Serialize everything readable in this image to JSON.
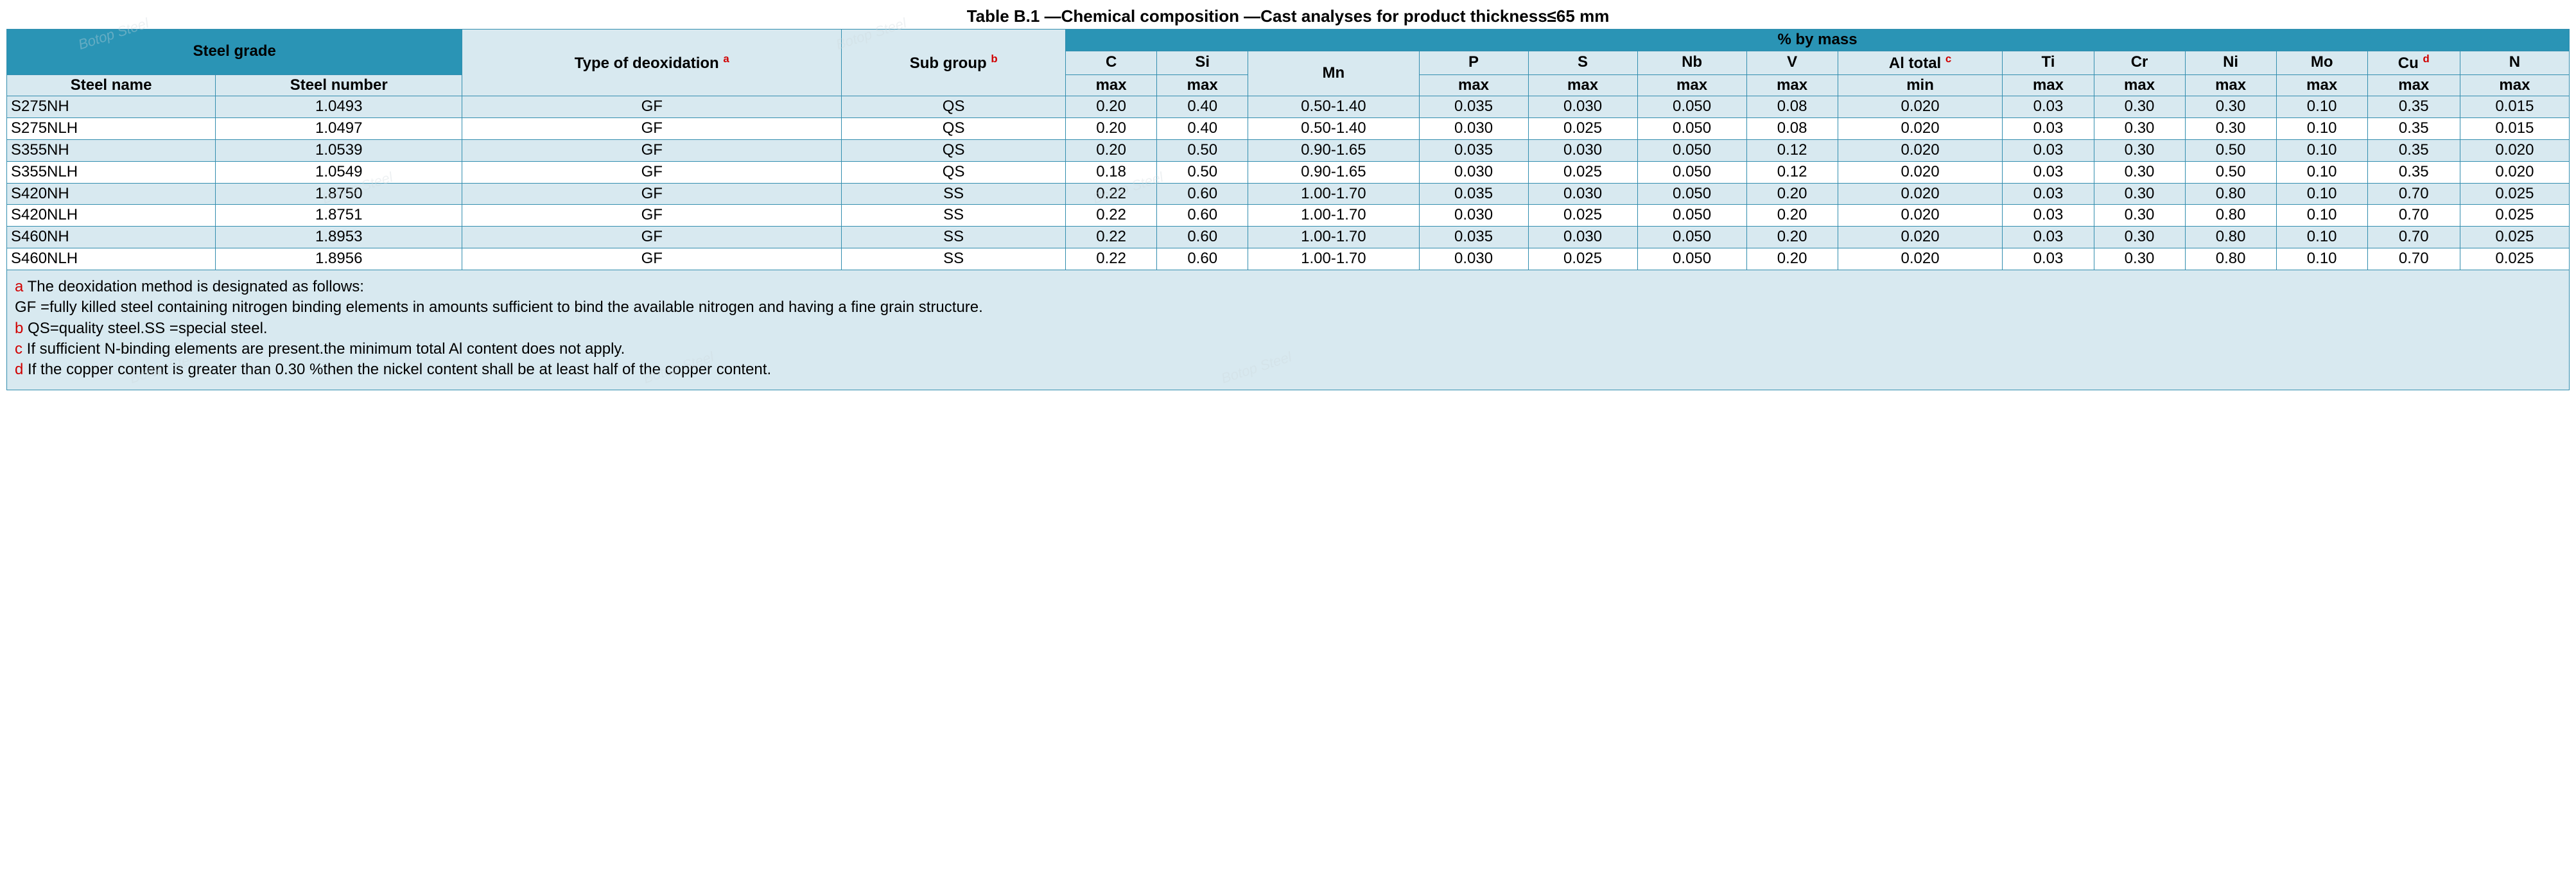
{
  "title": "Table B.1 —Chemical composition —Cast analyses for product thickness≤65 mm",
  "colors": {
    "header_dark_bg": "#2a94b5",
    "header_light_bg": "#d8e9f0",
    "row_even_bg": "#d8e9f0",
    "row_odd_bg": "#ffffff",
    "border": "#338eaf",
    "footnote_key": "#d00000",
    "text": "#000000",
    "watermark": "#cfd9dd"
  },
  "watermark_text": "Botop Steel",
  "headers": {
    "steel_grade": "Steel grade",
    "type_deox": "Type of deoxidation",
    "type_deox_sup": "a",
    "sub_group": "Sub group",
    "sub_group_sup": "b",
    "pct_mass": "% by mass",
    "steel_name": "Steel name",
    "steel_number": "Steel number",
    "elements": {
      "c": "C",
      "si": "Si",
      "mn": "Mn",
      "p": "P",
      "s": "S",
      "nb": "Nb",
      "v": "V",
      "al": "Al total",
      "al_sup": "c",
      "ti": "Ti",
      "cr": "Cr",
      "ni": "Ni",
      "mo": "Mo",
      "cu": "Cu",
      "cu_sup": "d",
      "n": "N"
    },
    "limits": {
      "c": "max",
      "si": "max",
      "p": "max",
      "s": "max",
      "nb": "max",
      "v": "max",
      "al": "min",
      "ti": "max",
      "cr": "max",
      "ni": "max",
      "mo": "max",
      "cu": "max",
      "n": "max"
    }
  },
  "rows": [
    {
      "name": "S275NH",
      "number": "1.0493",
      "deox": "GF",
      "group": "QS",
      "c": "0.20",
      "si": "0.40",
      "mn": "0.50-1.40",
      "p": "0.035",
      "s": "0.030",
      "nb": "0.050",
      "v": "0.08",
      "al": "0.020",
      "ti": "0.03",
      "cr": "0.30",
      "ni": "0.30",
      "mo": "0.10",
      "cu": "0.35",
      "n": "0.015"
    },
    {
      "name": "S275NLH",
      "number": "1.0497",
      "deox": "GF",
      "group": "QS",
      "c": "0.20",
      "si": "0.40",
      "mn": "0.50-1.40",
      "p": "0.030",
      "s": "0.025",
      "nb": "0.050",
      "v": "0.08",
      "al": "0.020",
      "ti": "0.03",
      "cr": "0.30",
      "ni": "0.30",
      "mo": "0.10",
      "cu": "0.35",
      "n": "0.015"
    },
    {
      "name": "S355NH",
      "number": "1.0539",
      "deox": "GF",
      "group": "QS",
      "c": "0.20",
      "si": "0.50",
      "mn": "0.90-1.65",
      "p": "0.035",
      "s": "0.030",
      "nb": "0.050",
      "v": "0.12",
      "al": "0.020",
      "ti": "0.03",
      "cr": "0.30",
      "ni": "0.50",
      "mo": "0.10",
      "cu": "0.35",
      "n": "0.020"
    },
    {
      "name": "S355NLH",
      "number": "1.0549",
      "deox": "GF",
      "group": "QS",
      "c": "0.18",
      "si": "0.50",
      "mn": "0.90-1.65",
      "p": "0.030",
      "s": "0.025",
      "nb": "0.050",
      "v": "0.12",
      "al": "0.020",
      "ti": "0.03",
      "cr": "0.30",
      "ni": "0.50",
      "mo": "0.10",
      "cu": "0.35",
      "n": "0.020"
    },
    {
      "name": "S420NH",
      "number": "1.8750",
      "deox": "GF",
      "group": "SS",
      "c": "0.22",
      "si": "0.60",
      "mn": "1.00-1.70",
      "p": "0.035",
      "s": "0.030",
      "nb": "0.050",
      "v": "0.20",
      "al": "0.020",
      "ti": "0.03",
      "cr": "0.30",
      "ni": "0.80",
      "mo": "0.10",
      "cu": "0.70",
      "n": "0.025"
    },
    {
      "name": "S420NLH",
      "number": "1.8751",
      "deox": "GF",
      "group": "SS",
      "c": "0.22",
      "si": "0.60",
      "mn": "1.00-1.70",
      "p": "0.030",
      "s": "0.025",
      "nb": "0.050",
      "v": "0.20",
      "al": "0.020",
      "ti": "0.03",
      "cr": "0.30",
      "ni": "0.80",
      "mo": "0.10",
      "cu": "0.70",
      "n": "0.025"
    },
    {
      "name": "S460NH",
      "number": "1.8953",
      "deox": "GF",
      "group": "SS",
      "c": "0.22",
      "si": "0.60",
      "mn": "1.00-1.70",
      "p": "0.035",
      "s": "0.030",
      "nb": "0.050",
      "v": "0.20",
      "al": "0.020",
      "ti": "0.03",
      "cr": "0.30",
      "ni": "0.80",
      "mo": "0.10",
      "cu": "0.70",
      "n": "0.025"
    },
    {
      "name": "S460NLH",
      "number": "1.8956",
      "deox": "GF",
      "group": "SS",
      "c": "0.22",
      "si": "0.60",
      "mn": "1.00-1.70",
      "p": "0.030",
      "s": "0.025",
      "nb": "0.050",
      "v": "0.20",
      "al": "0.020",
      "ti": "0.03",
      "cr": "0.30",
      "ni": "0.80",
      "mo": "0.10",
      "cu": "0.70",
      "n": "0.025"
    }
  ],
  "footnotes": {
    "a": {
      "key": "a",
      "text": " The deoxidation method is designated as follows:"
    },
    "a2": {
      "key": "",
      "text": "GF =fully killed steel containing nitrogen binding elements in amounts sufficient to bind the available nitrogen and having a fine grain structure."
    },
    "b": {
      "key": "b",
      "text": " QS=quality steel.SS =special steel."
    },
    "c": {
      "key": "c",
      "text": " If sufficient N-binding elements are present.the minimum total Al content does not apply."
    },
    "d": {
      "key": "d",
      "text": " If the copper content is greater than 0.30 %then the nickel content shall be at least half of the copper content."
    }
  }
}
